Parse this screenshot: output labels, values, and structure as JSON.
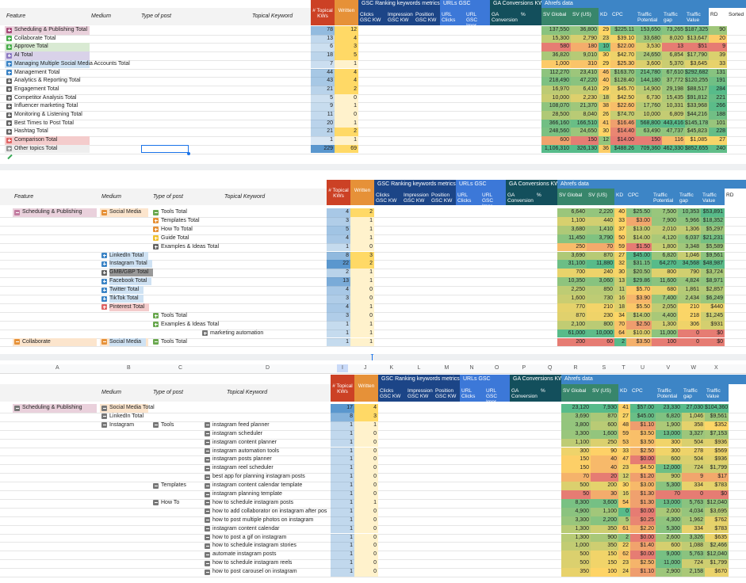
{
  "panels": [
    {
      "groups": [
        "GSC Ranking keywords metrics",
        "URLs GSC",
        "GA Conversions KW",
        "Ahrefs data"
      ],
      "columns": [
        "Feature",
        "Medium",
        "Type of post",
        "Topical Keyword",
        "# Topical KWs",
        "Written",
        "Clicks GSC KW",
        "Impression GSC KW",
        "Position GSC KW",
        "URL Clicks",
        "URL GSC Impr",
        "GA Conversion",
        "%",
        "SV Global",
        "SV (US)",
        "KD",
        "CPC",
        "Traffic Potential",
        "Traffic gap",
        "Traffic Value",
        "RD",
        "Sorted"
      ],
      "rows": [
        [
          "Scheduling & Publishing Total",
          null,
          null,
          null,
          "78",
          "12",
          "137,550",
          "36,800",
          "29",
          "$225.11",
          "153,650",
          "73,265",
          "$187,325",
          "90"
        ],
        [
          "Collaborate Total",
          null,
          null,
          null,
          "13",
          "4",
          "15,300",
          "2,790",
          "23",
          "$39.10",
          "33,680",
          "8,020",
          "$13,647",
          "20"
        ],
        [
          "Approve Total",
          null,
          null,
          null,
          "6",
          "3",
          "580",
          "180",
          "10",
          "$22.00",
          "3,530",
          "13",
          "$51",
          "9"
        ],
        [
          "AI Total",
          null,
          null,
          null,
          "18",
          "5",
          "36,820",
          "9,010",
          "30",
          "$42.70",
          "24,650",
          "6,854",
          "$17,790",
          "39"
        ],
        [
          "Managing Multiple Social Media Accounts Total",
          null,
          null,
          null,
          "7",
          "1",
          "1,000",
          "310",
          "29",
          "$25.30",
          "3,600",
          "5,370",
          "$3,645",
          "33"
        ],
        [
          "Management Total",
          null,
          null,
          null,
          "44",
          "4",
          "112,270",
          "23,410",
          "46",
          "$163.70",
          "214,780",
          "67,610",
          "$292,682",
          "131"
        ],
        [
          "Analytics & Reporting Total",
          null,
          null,
          null,
          "43",
          "4",
          "218,490",
          "47,220",
          "40",
          "$128.40",
          "144,180",
          "37,772",
          "$120,255",
          "191"
        ],
        [
          "Engagement Total",
          null,
          null,
          null,
          "21",
          "2",
          "16,970",
          "6,410",
          "29",
          "$45.70",
          "14,900",
          "29,198",
          "$88,517",
          "284"
        ],
        [
          "Competitor Analysis Total",
          null,
          null,
          null,
          "5",
          "0",
          "10,000",
          "2,230",
          "18",
          "$42.50",
          "6,730",
          "15,435",
          "$91,812",
          "221"
        ],
        [
          "Influencer marketing Total",
          null,
          null,
          null,
          "9",
          "1",
          "108,070",
          "21,370",
          "38",
          "$22.60",
          "17,760",
          "10,331",
          "$33,968",
          "266"
        ],
        [
          "Monitoring & Listening Total",
          null,
          null,
          null,
          "11",
          "0",
          "28,500",
          "8,040",
          "26",
          "$74.70",
          "10,000",
          "6,809",
          "$44,216",
          "188"
        ],
        [
          "Best Times to Post Total",
          null,
          null,
          null,
          "20",
          "1",
          "366,160",
          "166,510",
          "41",
          "$16.46",
          "568,800",
          "443,416",
          "$145,178",
          "101"
        ],
        [
          "Hashtag Total",
          null,
          null,
          null,
          "21",
          "2",
          "248,560",
          "24,650",
          "30",
          "$14.40",
          "63,490",
          "47,737",
          "$45,823",
          "228"
        ],
        [
          "Comparison Total",
          null,
          null,
          null,
          "1",
          "1",
          "600",
          "150",
          "12",
          "$14.00",
          "150",
          "116",
          "$1,085",
          "27"
        ],
        [
          "Other topics Total",
          null,
          null,
          null,
          "229",
          "69",
          "1,106,310",
          "326,130",
          "36",
          "$488.26",
          "709,360",
          "462,330",
          "$852,655",
          "240"
        ]
      ]
    },
    {
      "groups": [
        "GSC Ranking keywords metrics",
        "URLs GSC",
        "GA Conversions KW",
        "Ahrefs data"
      ],
      "columns": [
        "Feature",
        "Medium",
        "Type of post",
        "Topical Keyword",
        "# Topical KWs",
        "Written",
        "Clicks GSC KW",
        "Impression GSC KW",
        "Position GSC KW",
        "URL Clicks",
        "URL GSC Impr",
        "GA Conversion",
        "%",
        "SV Global",
        "SV (US)",
        "KD",
        "CPC",
        "Traffic Potential",
        "Traffic gap",
        "Traffic Value",
        "RD"
      ],
      "rows": [
        [
          "Scheduling & Publishing",
          "Social Media",
          "Tools Total",
          null,
          "4",
          "2",
          "6,640",
          "2,220",
          "40",
          "$25.50",
          "7,500",
          "10,353",
          "$53,891"
        ],
        [
          null,
          null,
          "Templates Total",
          null,
          "3",
          "1",
          "1,100",
          "440",
          "33",
          "$3.00",
          "7,900",
          "5,966",
          "$18,352"
        ],
        [
          null,
          null,
          "How To Total",
          null,
          "5",
          "1",
          "3,680",
          "1,410",
          "37",
          "$13.00",
          "2,010",
          "1,306",
          "$5,297"
        ],
        [
          null,
          null,
          "Guide Total",
          null,
          "4",
          "1",
          "11,450",
          "3,790",
          "50",
          "$14.00",
          "4,120",
          "6,037",
          "$21,231"
        ],
        [
          null,
          null,
          "Examples & Ideas Total",
          null,
          "1",
          "0",
          "250",
          "70",
          "59",
          "$1.50",
          "1,800",
          "3,348",
          "$5,589"
        ],
        [
          null,
          "LinkedIn Total",
          null,
          null,
          "8",
          "3",
          "3,690",
          "870",
          "27",
          "$45.00",
          "6,820",
          "1,046",
          "$9,561"
        ],
        [
          null,
          "Instagram Total",
          null,
          null,
          "22",
          "2",
          "31,100",
          "11,880",
          "32",
          "$31.15",
          "64,270",
          "34,568",
          "$48,987"
        ],
        [
          null,
          "GMB/GBP Total",
          null,
          null,
          "2",
          "1",
          "700",
          "240",
          "30",
          "$20.50",
          "800",
          "790",
          "$3,724"
        ],
        [
          null,
          "Facebook Total",
          null,
          null,
          "13",
          "1",
          "10,350",
          "3,060",
          "13",
          "$29.86",
          "11,600",
          "4,824",
          "$8,971"
        ],
        [
          null,
          "Twitter Total",
          null,
          null,
          "4",
          "0",
          "2,250",
          "850",
          "11",
          "$5.70",
          "680",
          "1,861",
          "$2,857"
        ],
        [
          null,
          "TikTok Total",
          null,
          null,
          "3",
          "0",
          "1,600",
          "730",
          "16",
          "$3.90",
          "7,400",
          "2,434",
          "$6,249"
        ],
        [
          null,
          "Pinterest Total",
          null,
          null,
          "4",
          "1",
          "770",
          "210",
          "18",
          "$5.50",
          "2,050",
          "210",
          "$440"
        ],
        [
          null,
          null,
          "Tools Total",
          null,
          "3",
          "0",
          "870",
          "230",
          "34",
          "$14.00",
          "4,400",
          "218",
          "$1,245"
        ],
        [
          null,
          null,
          "Examples & Ideas Total",
          null,
          "1",
          "1",
          "2,100",
          "800",
          "70",
          "$2.50",
          "1,300",
          "306",
          "$931"
        ],
        [
          null,
          null,
          null,
          "marketing automation",
          "1",
          "1",
          "61,000",
          "10,000",
          "64",
          "$10.00",
          "11,000",
          "0",
          "$0"
        ],
        [
          "Collaborate",
          "Social Media",
          "Tools Total",
          null,
          "1",
          "1",
          "200",
          "60",
          "2",
          "$3.50",
          "100",
          "0",
          "$0"
        ]
      ]
    },
    {
      "letters": [
        "A",
        "B",
        "C",
        "D",
        "I",
        "J",
        "K",
        "L",
        "M",
        "N",
        "O",
        "P",
        "Q",
        "R",
        "S",
        "T",
        "U",
        "V",
        "W",
        "X"
      ],
      "groups": [
        "GSC Ranking keywords metrics",
        "URLs GSC",
        "GA Conversions KW",
        "Ahrefs data"
      ],
      "columns": [
        null,
        "Medium",
        "Type of post",
        "Topical Keyword",
        "# Topical KWs",
        "Written",
        "Clicks GSC KW",
        "Impression GSC KW",
        "Position GSC KW",
        "URL Clicks",
        "URL GSC Impr",
        "GA Conversion",
        "%",
        "SV Global",
        "SV (US)",
        "KD",
        "CPC",
        "Traffic Potential",
        "Traffic gap",
        "Traffic Value"
      ],
      "rows": [
        [
          "Scheduling & Publishing",
          "Social Media Total",
          null,
          null,
          "17",
          "4",
          "23,120",
          "7,930",
          "41",
          "$57.00",
          "23,330",
          "27,030",
          "$104,360"
        ],
        [
          null,
          "LinkedIn Total",
          null,
          null,
          "8",
          "3",
          "3,690",
          "870",
          "27",
          "$45.00",
          "6,820",
          "1,046",
          "$9,561"
        ],
        [
          null,
          "Instagram",
          "Tools",
          "instagram feed planner",
          "1",
          "1",
          "3,800",
          "600",
          "48",
          "$1.10",
          "1,900",
          "358",
          "$352"
        ],
        [
          null,
          null,
          null,
          "instagram scheduler",
          "1",
          "0",
          "3,300",
          "1,600",
          "59",
          "$3.50",
          "13,000",
          "3,327",
          "$7,153"
        ],
        [
          null,
          null,
          null,
          "instagram content planner",
          "1",
          "0",
          "1,100",
          "250",
          "53",
          "$3.50",
          "300",
          "504",
          "$936"
        ],
        [
          null,
          null,
          null,
          "instagram automation tools",
          "1",
          "0",
          "300",
          "90",
          "33",
          "$2.50",
          "300",
          "278",
          "$569"
        ],
        [
          null,
          null,
          null,
          "instagram posts planner",
          "1",
          "0",
          "150",
          "40",
          "47",
          "$0.00",
          "600",
          "504",
          "$936"
        ],
        [
          null,
          null,
          null,
          "instagram reel scheduler",
          "1",
          "0",
          "150",
          "40",
          "23",
          "$4.50",
          "12,000",
          "724",
          "$1,799"
        ],
        [
          null,
          null,
          null,
          "best app for planning instagram posts",
          "1",
          "0",
          "70",
          "20",
          "12",
          "$1.20",
          "900",
          "9",
          "$17"
        ],
        [
          null,
          null,
          "Templates",
          "instagram content calendar template",
          "1",
          "0",
          "500",
          "200",
          "30",
          "$3.00",
          "5,300",
          "334",
          "$783"
        ],
        [
          null,
          null,
          null,
          "instagram planning template",
          "1",
          "0",
          "50",
          "30",
          "16",
          "$1.30",
          "70",
          "0",
          "$0"
        ],
        [
          null,
          null,
          "How To",
          "how to schedule instagram posts",
          "1",
          "1",
          "8,300",
          "3,600",
          "54",
          "$1.30",
          "13,000",
          "5,763",
          "$12,040"
        ],
        [
          null,
          null,
          null,
          "how to add collaborator on instagram after pos",
          "1",
          "0",
          "4,900",
          "1,100",
          "0",
          "$0.00",
          "2,000",
          "4,034",
          "$3,695"
        ],
        [
          null,
          null,
          null,
          "how to post multiple photos on instagram",
          "1",
          "0",
          "3,300",
          "2,200",
          "5",
          "$0.25",
          "4,300",
          "1,962",
          "$762"
        ],
        [
          null,
          null,
          null,
          "instagram content calendar",
          "1",
          "0",
          "1,300",
          "350",
          "61",
          "$2.20",
          "5,300",
          "334",
          "$783"
        ],
        [
          null,
          null,
          null,
          "how to post a gif on instagram",
          "1",
          "0",
          "1,300",
          "900",
          "2",
          "$0.00",
          "2,600",
          "3,326",
          "$635"
        ],
        [
          null,
          null,
          null,
          "how to schedule instagram stories",
          "1",
          "0",
          "1,000",
          "350",
          "22",
          "$1.40",
          "600",
          "1,088",
          "$2,466"
        ],
        [
          null,
          null,
          null,
          "automate instagram posts",
          "1",
          "0",
          "500",
          "150",
          "62",
          "$0.00",
          "9,000",
          "5,763",
          "$12,040"
        ],
        [
          null,
          null,
          null,
          "how to schedule instagram reels",
          "1",
          "0",
          "500",
          "150",
          "23",
          "$2.50",
          "11,000",
          "724",
          "$1,799"
        ],
        [
          null,
          null,
          null,
          "how to post carousel on instagram",
          "1",
          "0",
          "350",
          "100",
          "24",
          "$1.10",
          "2,900",
          "2,158",
          "$670"
        ]
      ]
    }
  ]
}
